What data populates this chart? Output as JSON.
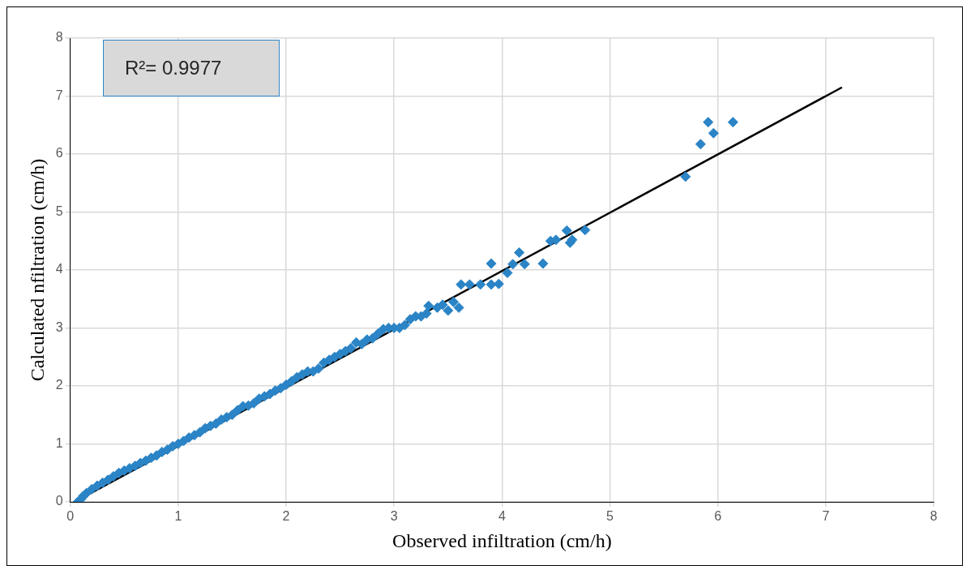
{
  "chart_data": {
    "type": "scatter",
    "xlabel": "Observed infiltration (cm/h)",
    "ylabel": "Calculated nfiltration (cm/h)",
    "annotations": [
      "R²= 0.9977"
    ],
    "xlim": [
      0,
      8
    ],
    "xticks": [
      0,
      1,
      2,
      3,
      4,
      5,
      6,
      7,
      8
    ],
    "ylim": [
      0,
      8
    ],
    "yticks": [
      0,
      1,
      2,
      3,
      4,
      5,
      6,
      7,
      8
    ],
    "grid": true,
    "legend": false,
    "marker": "diamond",
    "series": [
      {
        "type": "scatter",
        "color": "#2a84c6",
        "x": [
          0.07,
          0.1,
          0.12,
          0.15,
          0.2,
          0.25,
          0.3,
          0.35,
          0.4,
          0.45,
          0.5,
          0.55,
          0.6,
          0.65,
          0.7,
          0.75,
          0.8,
          0.85,
          0.9,
          0.95,
          1.0,
          1.05,
          1.1,
          1.15,
          1.2,
          1.25,
          1.3,
          1.35,
          1.4,
          1.45,
          1.5,
          1.55,
          1.6,
          1.65,
          1.7,
          1.75,
          1.8,
          1.85,
          1.9,
          1.95,
          2.0,
          2.05,
          2.1,
          2.15,
          2.2,
          2.25,
          2.3,
          2.35,
          2.4,
          2.45,
          2.5,
          2.55,
          2.6,
          2.65,
          2.7,
          2.75,
          2.8,
          2.85,
          2.9,
          2.95,
          3.0,
          3.05,
          3.1,
          3.15,
          3.2,
          3.25,
          3.3,
          3.32,
          3.4,
          3.45,
          3.5,
          3.55,
          3.6,
          3.62,
          3.7,
          3.8,
          3.9,
          3.9,
          3.97,
          4.05,
          4.1,
          4.16,
          4.21,
          4.38,
          4.45,
          4.5,
          4.6,
          4.63,
          4.65,
          4.77,
          5.7,
          5.84,
          5.91,
          5.96,
          6.14
        ],
        "values": [
          0.0,
          0.05,
          0.1,
          0.15,
          0.22,
          0.28,
          0.33,
          0.38,
          0.44,
          0.5,
          0.54,
          0.58,
          0.62,
          0.67,
          0.71,
          0.76,
          0.8,
          0.86,
          0.9,
          0.96,
          1.0,
          1.05,
          1.11,
          1.15,
          1.2,
          1.27,
          1.31,
          1.35,
          1.42,
          1.46,
          1.5,
          1.58,
          1.65,
          1.66,
          1.7,
          1.78,
          1.82,
          1.86,
          1.92,
          1.96,
          2.02,
          2.08,
          2.15,
          2.2,
          2.25,
          2.25,
          2.3,
          2.4,
          2.45,
          2.5,
          2.55,
          2.6,
          2.65,
          2.75,
          2.72,
          2.8,
          2.82,
          2.9,
          2.98,
          3.0,
          3.0,
          3.0,
          3.05,
          3.15,
          3.2,
          3.2,
          3.25,
          3.38,
          3.35,
          3.4,
          3.3,
          3.45,
          3.35,
          3.75,
          3.75,
          3.75,
          3.75,
          4.11,
          3.76,
          3.95,
          4.1,
          4.3,
          4.1,
          4.11,
          4.5,
          4.52,
          4.68,
          4.47,
          4.52,
          4.69,
          5.61,
          6.17,
          6.55,
          6.36,
          6.55
        ]
      },
      {
        "type": "line",
        "color": "#000000",
        "marker": "none",
        "x": [
          0.07,
          7.15
        ],
        "values": [
          0.03,
          7.15
        ]
      }
    ]
  }
}
